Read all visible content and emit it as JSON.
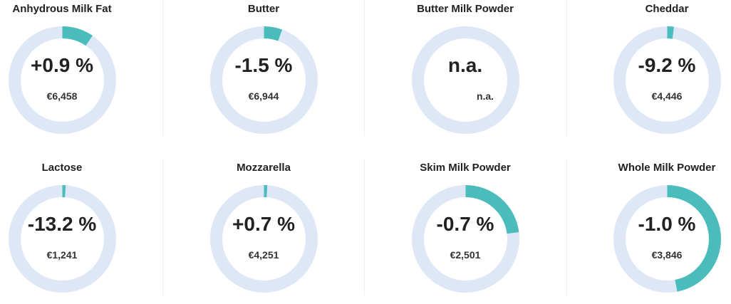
{
  "chart_data": {
    "type": "donut",
    "colors": {
      "ring": "#dde7f5",
      "fill": "#4bbcbc",
      "text": "#222222"
    },
    "items": [
      {
        "name": "Anhydrous Milk Fat",
        "change": "+0.9 %",
        "price": "€6,458",
        "fill_fraction": 0.095
      },
      {
        "name": "Butter",
        "change": "-1.5 %",
        "price": "€6,944",
        "fill_fraction": 0.055
      },
      {
        "name": "Butter Milk Powder",
        "change": "n.a.",
        "price": "n.a.",
        "fill_fraction": 0
      },
      {
        "name": "Cheddar",
        "change": "-9.2 %",
        "price": "€4,446",
        "fill_fraction": 0.02
      },
      {
        "name": "Lactose",
        "change": "-13.2 %",
        "price": "€1,241",
        "fill_fraction": 0.01
      },
      {
        "name": "Mozzarella",
        "change": "+0.7 %",
        "price": "€4,251",
        "fill_fraction": 0.01
      },
      {
        "name": "Skim Milk Powder",
        "change": "-0.7 %",
        "price": "€2,501",
        "fill_fraction": 0.23
      },
      {
        "name": "Whole Milk Powder",
        "change": "-1.0 %",
        "price": "€3,846",
        "fill_fraction": 0.47
      }
    ]
  }
}
